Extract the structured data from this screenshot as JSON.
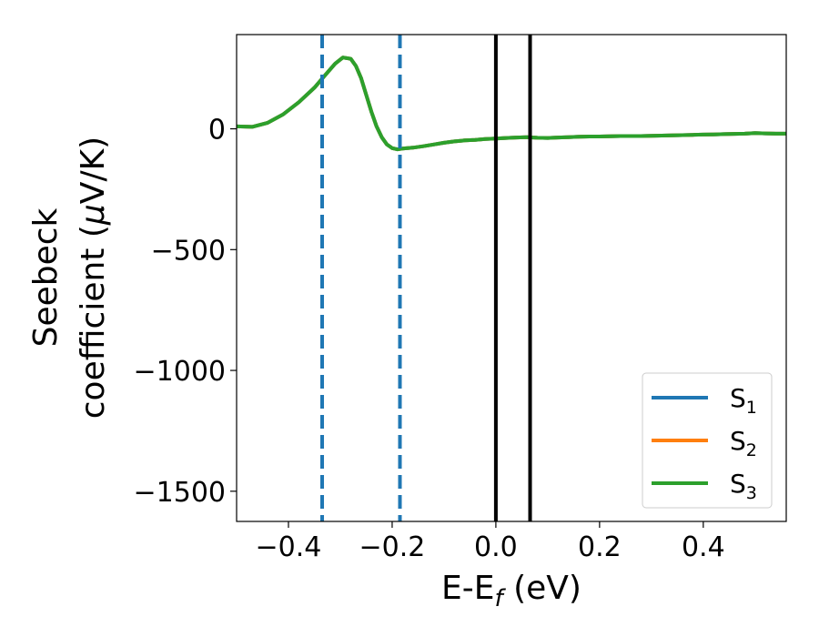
{
  "chart_data": {
    "type": "line",
    "xlabel": {
      "main": "E-E",
      "sub": "f",
      "unit": " (eV)"
    },
    "ylabel": {
      "line1": "Seebeck",
      "line2_pre": "coefficient  (",
      "mu": "μ",
      "line2_post": "V/K)"
    },
    "xlim": [
      -0.5,
      0.56
    ],
    "ylim": [
      -1625,
      390
    ],
    "x_ticks": [
      -0.4,
      -0.2,
      0.0,
      0.2,
      0.4
    ],
    "x_tick_labels": [
      "−0.4",
      "−0.2",
      "0.0",
      "0.2",
      "0.4"
    ],
    "y_ticks": [
      0,
      -500,
      -1000,
      -1500
    ],
    "y_tick_labels": [
      "0",
      "−500",
      "−1000",
      "−1500"
    ],
    "grid": false,
    "legend_position": "bottom-right",
    "vertical_lines": [
      {
        "x": -0.335,
        "style": "dashed",
        "color": "#1f77b4"
      },
      {
        "x": -0.185,
        "style": "dashed",
        "color": "#1f77b4"
      },
      {
        "x": 0.0,
        "style": "solid",
        "color": "#000000"
      },
      {
        "x": 0.066,
        "style": "solid",
        "color": "#000000"
      }
    ],
    "series": [
      {
        "name": "S",
        "sub": "1",
        "color": "#1f77b4",
        "x": [
          -0.5,
          -0.47,
          -0.44,
          -0.41,
          -0.38,
          -0.35,
          -0.33,
          -0.31,
          -0.295,
          -0.28,
          -0.27,
          -0.26,
          -0.25,
          -0.24,
          -0.23,
          -0.22,
          -0.21,
          -0.2,
          -0.19,
          -0.18,
          -0.16,
          -0.14,
          -0.12,
          -0.1,
          -0.08,
          -0.06,
          -0.04,
          -0.02,
          0.0,
          0.02,
          0.04,
          0.06,
          0.08,
          0.1,
          0.12,
          0.14,
          0.16,
          0.18,
          0.2,
          0.22,
          0.24,
          0.26,
          0.28,
          0.3,
          0.32,
          0.34,
          0.36,
          0.38,
          0.4,
          0.42,
          0.44,
          0.46,
          0.48,
          0.5,
          0.52,
          0.54,
          0.56
        ],
        "y": [
          10,
          8,
          25,
          60,
          110,
          170,
          220,
          270,
          295,
          290,
          260,
          210,
          140,
          70,
          10,
          -35,
          -65,
          -80,
          -85,
          -82,
          -78,
          -72,
          -65,
          -58,
          -52,
          -48,
          -46,
          -42,
          -40,
          -38,
          -36,
          -35,
          -37,
          -38,
          -36,
          -35,
          -33,
          -32,
          -32,
          -31,
          -30,
          -30,
          -30,
          -29,
          -28,
          -27,
          -26,
          -25,
          -24,
          -23,
          -22,
          -21,
          -20,
          -18,
          -19,
          -20,
          -20
        ]
      },
      {
        "name": "S",
        "sub": "2",
        "color": "#ff7f0e",
        "x": [
          -0.5,
          -0.47,
          -0.44,
          -0.41,
          -0.38,
          -0.35,
          -0.33,
          -0.31,
          -0.295,
          -0.28,
          -0.27,
          -0.26,
          -0.25,
          -0.24,
          -0.23,
          -0.22,
          -0.21,
          -0.2,
          -0.19,
          -0.18,
          -0.16,
          -0.14,
          -0.12,
          -0.1,
          -0.08,
          -0.06,
          -0.04,
          -0.02,
          0.0,
          0.02,
          0.04,
          0.06,
          0.08,
          0.1,
          0.12,
          0.14,
          0.16,
          0.18,
          0.2,
          0.22,
          0.24,
          0.26,
          0.28,
          0.3,
          0.32,
          0.34,
          0.36,
          0.38,
          0.4,
          0.42,
          0.44,
          0.46,
          0.48,
          0.5,
          0.52,
          0.54,
          0.56
        ],
        "y": [
          10,
          8,
          25,
          60,
          110,
          170,
          220,
          270,
          295,
          290,
          260,
          210,
          140,
          70,
          10,
          -35,
          -65,
          -80,
          -85,
          -82,
          -78,
          -72,
          -65,
          -58,
          -52,
          -48,
          -46,
          -42,
          -40,
          -38,
          -36,
          -35,
          -37,
          -38,
          -36,
          -35,
          -33,
          -32,
          -32,
          -31,
          -30,
          -30,
          -30,
          -29,
          -28,
          -27,
          -26,
          -25,
          -24,
          -23,
          -22,
          -21,
          -20,
          -18,
          -19,
          -20,
          -20
        ]
      },
      {
        "name": "S",
        "sub": "3",
        "color": "#2ca02c",
        "x": [
          -0.5,
          -0.47,
          -0.44,
          -0.41,
          -0.38,
          -0.35,
          -0.33,
          -0.31,
          -0.295,
          -0.28,
          -0.27,
          -0.26,
          -0.25,
          -0.24,
          -0.23,
          -0.22,
          -0.21,
          -0.2,
          -0.19,
          -0.18,
          -0.16,
          -0.14,
          -0.12,
          -0.1,
          -0.08,
          -0.06,
          -0.04,
          -0.02,
          0.0,
          0.02,
          0.04,
          0.06,
          0.08,
          0.1,
          0.12,
          0.14,
          0.16,
          0.18,
          0.2,
          0.22,
          0.24,
          0.26,
          0.28,
          0.3,
          0.32,
          0.34,
          0.36,
          0.38,
          0.4,
          0.42,
          0.44,
          0.46,
          0.48,
          0.5,
          0.52,
          0.54,
          0.56
        ],
        "y": [
          10,
          8,
          25,
          60,
          110,
          170,
          220,
          270,
          295,
          290,
          260,
          210,
          140,
          70,
          10,
          -35,
          -65,
          -80,
          -85,
          -82,
          -78,
          -72,
          -65,
          -58,
          -52,
          -48,
          -46,
          -42,
          -40,
          -38,
          -36,
          -35,
          -37,
          -38,
          -36,
          -35,
          -33,
          -32,
          -32,
          -31,
          -30,
          -30,
          -30,
          -29,
          -28,
          -27,
          -26,
          -25,
          -24,
          -23,
          -22,
          -21,
          -20,
          -18,
          -19,
          -20,
          -20
        ]
      }
    ]
  }
}
